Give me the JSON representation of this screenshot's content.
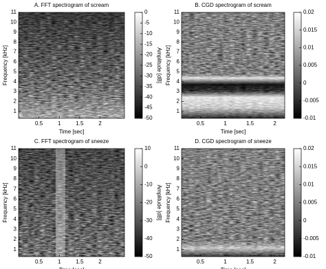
{
  "chart_data": [
    {
      "type": "spectrogram",
      "title": "A. FFT spectrogram of scream",
      "xlabel": "Time [sec]",
      "ylabel": "Frequency [kHz]",
      "xlim": [
        0,
        2.6
      ],
      "xticks": [
        0.5,
        1,
        1.5,
        2
      ],
      "ylim": [
        0.3,
        11
      ],
      "yticks": [
        1,
        2,
        3,
        4,
        5,
        6,
        7,
        8,
        9,
        10,
        11
      ],
      "colorbar": {
        "label": "Amplitude [dB]",
        "lim": [
          -50,
          0
        ],
        "ticks": [
          0,
          -5,
          -10,
          -15,
          -20,
          -25,
          -30,
          -35,
          -40,
          -45,
          -50
        ]
      }
    },
    {
      "type": "spectrogram",
      "title": "B. CGD spectrogram of scream",
      "xlabel": "Time [sec]",
      "ylabel": "Frequency [kHz]",
      "xlim": [
        0.12,
        2.2
      ],
      "xticks": [
        0.5,
        1,
        1.5,
        2
      ],
      "ylim": [
        0.3,
        11
      ],
      "yticks": [
        1,
        2,
        3,
        4,
        5,
        6,
        7,
        8,
        9,
        10,
        11
      ],
      "colorbar": {
        "lim": [
          -0.01,
          0.02
        ],
        "ticks": [
          0.02,
          0.015,
          0.01,
          0.005,
          0,
          -0.005,
          -0.01
        ]
      }
    },
    {
      "type": "spectrogram",
      "title": "C. FFT spectrogram of sneeze",
      "xlabel": "Time [sec]",
      "ylabel": "Frequency [kHz]",
      "xlim": [
        0,
        2.6
      ],
      "xticks": [
        0.5,
        1,
        1.5,
        2
      ],
      "ylim": [
        0.3,
        11
      ],
      "yticks": [
        1,
        2,
        3,
        4,
        5,
        6,
        7,
        8,
        9,
        10,
        11
      ],
      "colorbar": {
        "label": "Amplitude [dB]",
        "lim": [
          -50,
          10
        ],
        "ticks": [
          10,
          0,
          -10,
          -20,
          -30,
          -40,
          -50
        ]
      }
    },
    {
      "type": "spectrogram",
      "title": "D. CGD spectrogram of sneeze",
      "xlabel": "Time [sec]",
      "ylabel": "Frequency [kHz]",
      "xlim": [
        0.12,
        2.2
      ],
      "xticks": [
        0.5,
        1,
        1.5,
        2
      ],
      "ylim": [
        0.3,
        11
      ],
      "yticks": [
        1,
        2,
        3,
        4,
        5,
        6,
        7,
        8,
        9,
        10,
        11
      ],
      "colorbar": {
        "lim": [
          -0.01,
          0.02
        ],
        "ticks": [
          0.02,
          0.015,
          0.01,
          0.005,
          0,
          -0.005,
          -0.01
        ]
      }
    }
  ]
}
